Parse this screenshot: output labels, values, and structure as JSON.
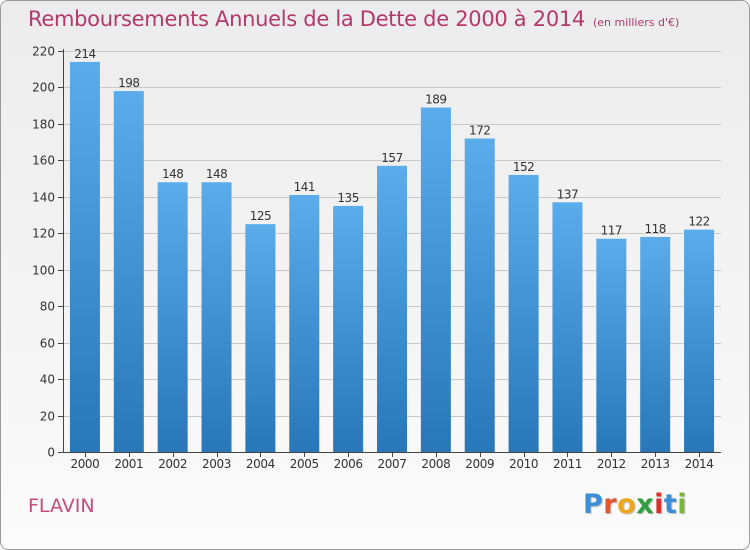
{
  "header": {
    "title": "Remboursements Annuels de la Dette de 2000 à 2014",
    "subtitle": "(en milliers d'€)"
  },
  "footer": {
    "commune": "FLAVIN",
    "brand": "Proxiti",
    "brand_letters": [
      "P",
      "r",
      "o",
      "x",
      "i",
      "t",
      "i"
    ],
    "brand_colors": [
      "#3b8fd6",
      "#e2572b",
      "#f0a818",
      "#2f9e3f",
      "#d8322b",
      "#3b8fd6",
      "#7bb53a"
    ]
  },
  "colors": {
    "bar": "#4d9fe0",
    "bar_light": "#5aaceb",
    "bar_dark": "#2777b9",
    "grid": "#c9c9c9",
    "axis": "#444444",
    "text": "#333333"
  },
  "chart_data": {
    "type": "bar",
    "categories": [
      "2000",
      "2001",
      "2002",
      "2003",
      "2004",
      "2005",
      "2006",
      "2007",
      "2008",
      "2009",
      "2010",
      "2011",
      "2012",
      "2013",
      "2014"
    ],
    "values": [
      214,
      198,
      148,
      148,
      125,
      141,
      135,
      157,
      189,
      172,
      152,
      137,
      117,
      118,
      122
    ],
    "data_labels": [
      "214",
      "198",
      "148",
      "148",
      "125",
      "141",
      "135",
      "157",
      "189",
      "172",
      "152",
      "137",
      "117",
      "118",
      "122"
    ],
    "yticks": [
      0,
      20,
      40,
      60,
      80,
      100,
      120,
      140,
      160,
      180,
      200,
      220
    ],
    "ylim": [
      0,
      220
    ],
    "grid": true,
    "title": "Remboursements Annuels de la Dette de 2000 à 2014",
    "xlabel": "",
    "ylabel": ""
  }
}
